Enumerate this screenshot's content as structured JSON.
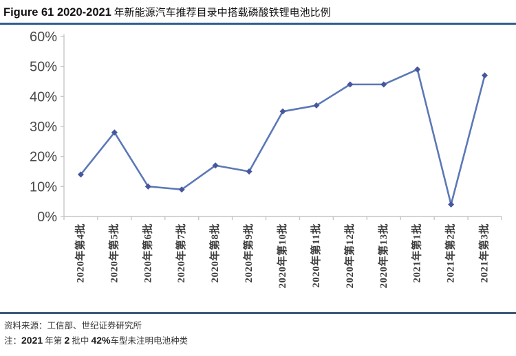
{
  "title": {
    "en": "Figure 61 2020-2021",
    "zh": " 年新能源汽车推荐目录中搭载磷酸铁锂电池比例"
  },
  "colors": {
    "title_rule": "#2E5E8E",
    "footer_rule": "#3D5A7A",
    "line": "#5B78B6",
    "marker": "#47579F",
    "axis": "#C6C6C6",
    "ylabel": "#4A4A4A",
    "xlabel": "#3D3D3D"
  },
  "chart_data": {
    "type": "line",
    "categories": [
      "2020年第4批",
      "2020年第5批",
      "2020年第6批",
      "2020年第7批",
      "2020年第8批",
      "2020年第9批",
      "2020年第10批",
      "2020年第11批",
      "2020年第12批",
      "2020年第13批",
      "2021年第1批",
      "2021年第2批",
      "2021年第3批"
    ],
    "values": [
      14,
      28,
      10,
      9,
      17,
      15,
      35,
      37,
      44,
      44,
      49,
      4,
      47
    ],
    "title": "2020-2021 年新能源汽车推荐目录中搭载磷酸铁锂电池比例",
    "xlabel": "",
    "ylabel": "",
    "ylim": [
      0,
      60
    ],
    "ytick_step": 10,
    "ytick_suffix": "%",
    "grid": false,
    "legend": "none",
    "marker": "diamond"
  },
  "footer": {
    "source": "资料来源：工信部、世纪证券研究所",
    "note_segments": [
      {
        "text": "注：",
        "style": "zh"
      },
      {
        "text": "2021",
        "style": "num"
      },
      {
        "text": " 年第 ",
        "style": "zh"
      },
      {
        "text": "2",
        "style": "num"
      },
      {
        "text": " 批中 ",
        "style": "zh"
      },
      {
        "text": "42%",
        "style": "num"
      },
      {
        "text": "车型未注明电池种类",
        "style": "zh"
      }
    ]
  }
}
